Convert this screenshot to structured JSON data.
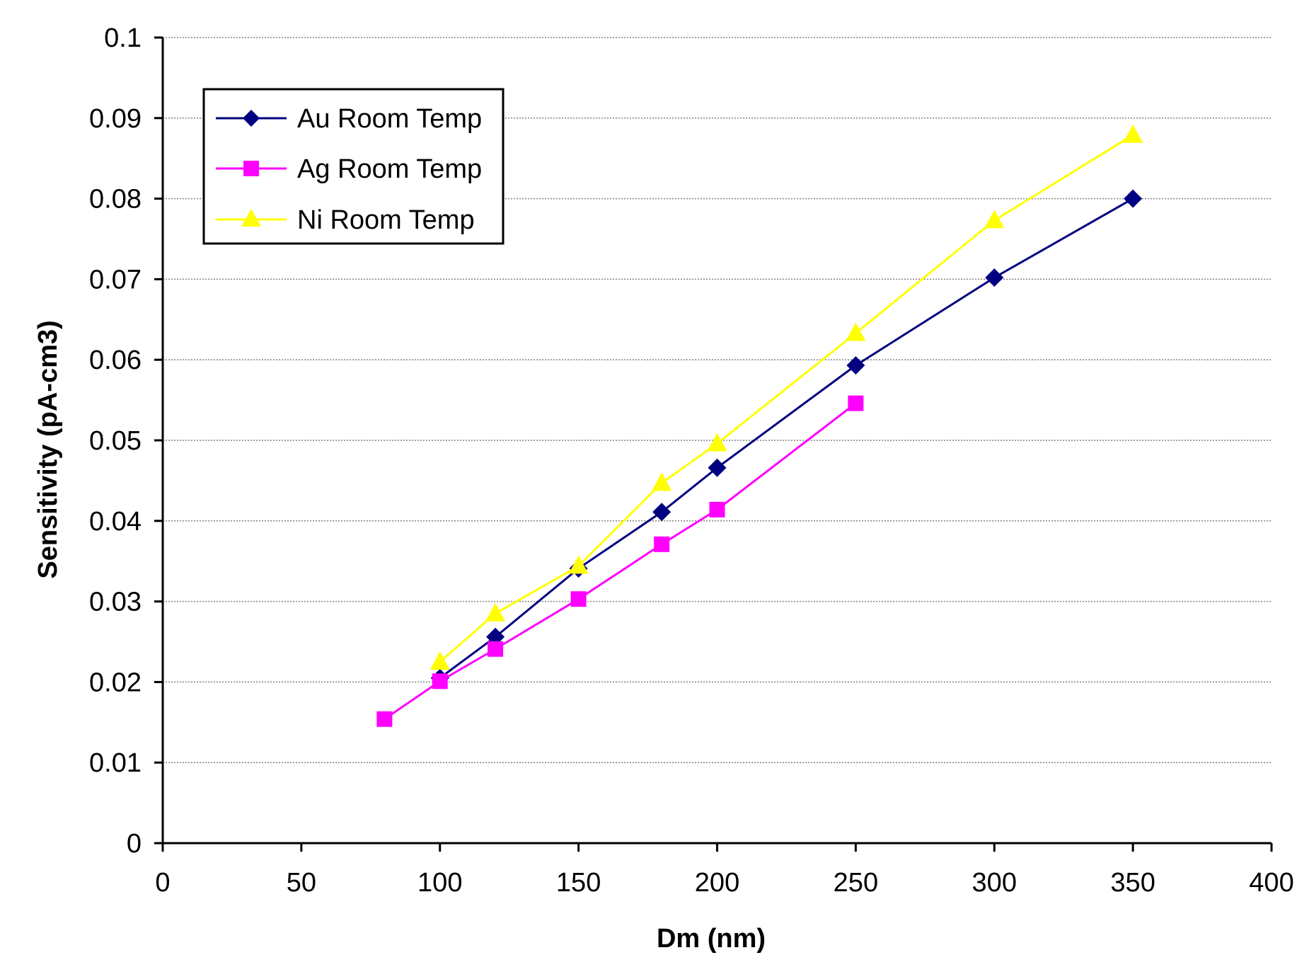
{
  "chart_data": {
    "type": "line",
    "xlabel": "Dm (nm)",
    "ylabel": "Sensitivity (pA-cm3)",
    "xlim": [
      0,
      400
    ],
    "ylim": [
      0,
      0.1
    ],
    "x_ticks": [
      "0",
      "50",
      "100",
      "150",
      "200",
      "250",
      "300",
      "350",
      "400"
    ],
    "y_ticks": [
      "0",
      "0.01",
      "0.02",
      "0.03",
      "0.04",
      "0.05",
      "0.06",
      "0.07",
      "0.08",
      "0.09",
      "0.1"
    ],
    "grid": "horizontal dotted",
    "legend_position": "top-left",
    "series": [
      {
        "name": "Au Room Temp",
        "color": "#000080",
        "marker": "diamond",
        "x": [
          100,
          120,
          150,
          180,
          200,
          250,
          300,
          350
        ],
        "y": [
          0.0205,
          0.0256,
          0.0341,
          0.0411,
          0.0466,
          0.0593,
          0.0702,
          0.08
        ]
      },
      {
        "name": "Ag Room Temp",
        "color": "#FF00FF",
        "marker": "square",
        "x": [
          80,
          100,
          120,
          150,
          180,
          200,
          250
        ],
        "y": [
          0.0154,
          0.0201,
          0.0241,
          0.0303,
          0.0371,
          0.0414,
          0.0546
        ]
      },
      {
        "name": "Ni Room Temp",
        "color": "#FFFF00",
        "marker": "triangle",
        "x": [
          100,
          120,
          150,
          180,
          200,
          250,
          300,
          350
        ],
        "y": [
          0.0225,
          0.0285,
          0.0344,
          0.0447,
          0.0496,
          0.0633,
          0.0773,
          0.0879
        ]
      }
    ]
  }
}
